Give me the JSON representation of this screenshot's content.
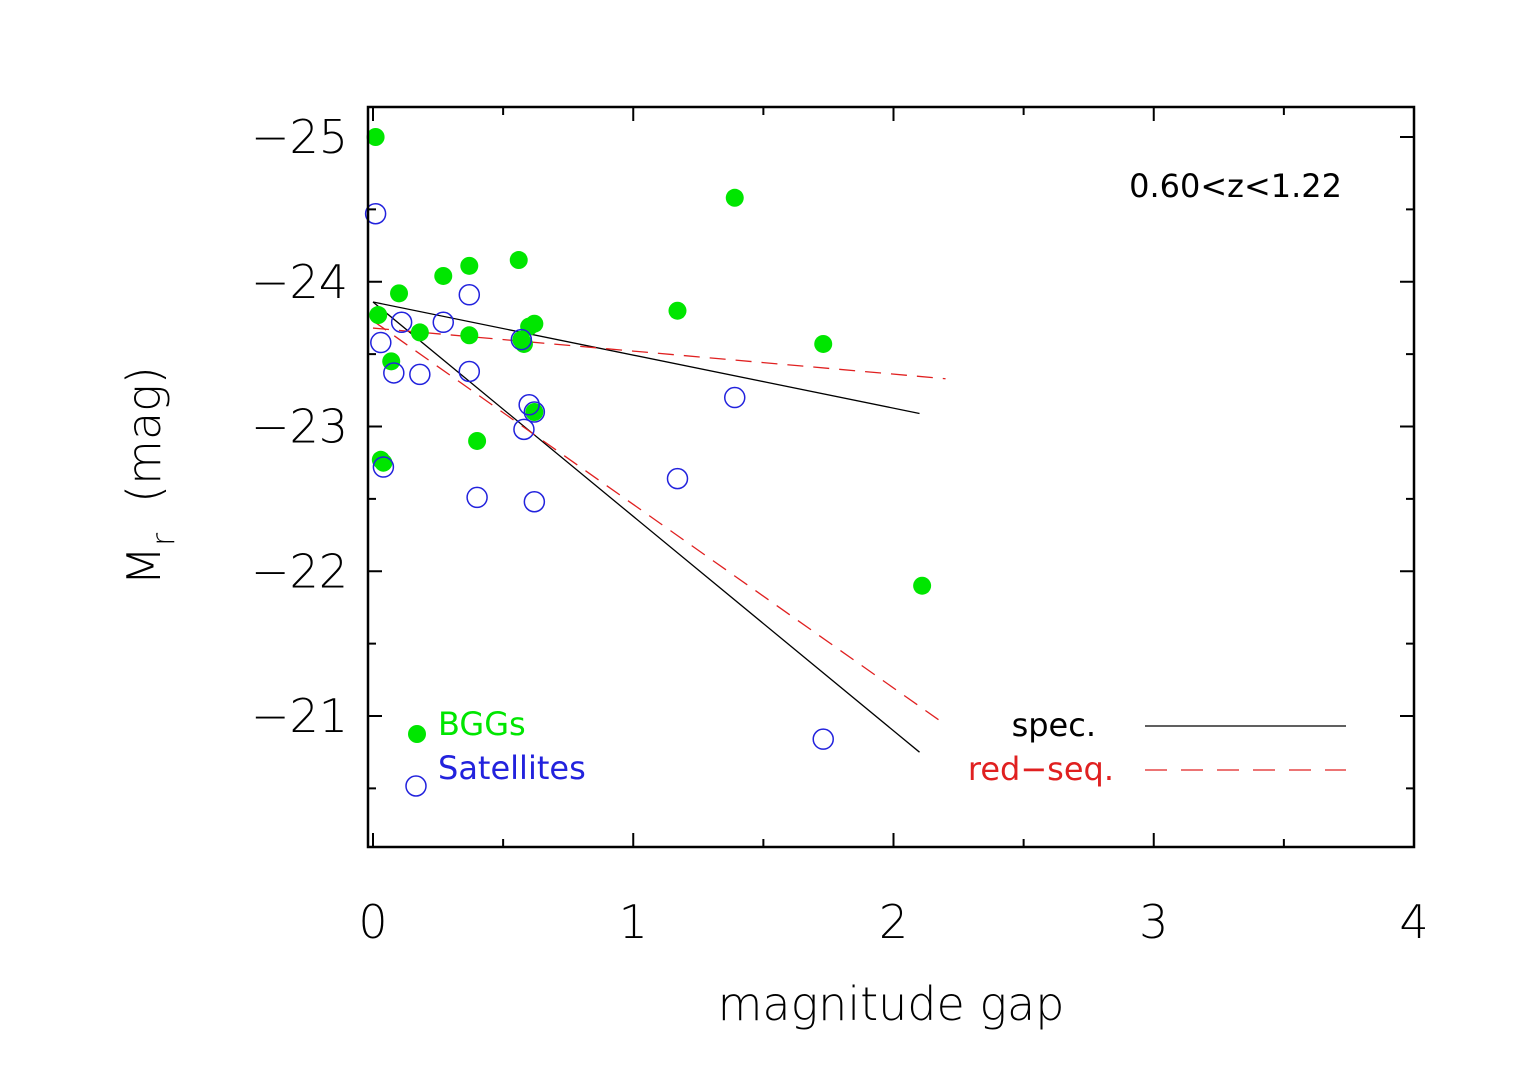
{
  "chart_data": {
    "type": "scatter",
    "xlabel": "magnitude gap",
    "ylabel": {
      "main": "M",
      "subscript": "r",
      "unit": "(mag)"
    },
    "xlim": [
      0,
      4
    ],
    "ylim": [
      -20.1,
      -25.2
    ],
    "x_ticks": [
      0,
      1,
      2,
      3,
      4
    ],
    "x_tick_labels": [
      "0",
      "1",
      "2",
      "3",
      "4"
    ],
    "x_minor_ticks": [
      0.5,
      1.5,
      2.5,
      3.5
    ],
    "y_ticks": [
      -25,
      -24,
      -23,
      -22,
      -21
    ],
    "y_tick_labels": [
      "−25",
      "−24",
      "−23",
      "−22",
      "−21"
    ],
    "y_minor_ticks": [
      -24.5,
      -23.5,
      -22.5,
      -21.5,
      -20.5
    ],
    "annotation": "0.60<z<1.22",
    "colors": {
      "bggs": "#00e600",
      "satellites": "#2222dd",
      "spec": "#000000",
      "redseq": "#e02020"
    },
    "series": [
      {
        "name": "BGGs",
        "marker": "filled-circle",
        "points": [
          [
            0.01,
            -25.0
          ],
          [
            0.02,
            -23.77
          ],
          [
            0.03,
            -22.77
          ],
          [
            0.04,
            -22.75
          ],
          [
            0.07,
            -23.45
          ],
          [
            0.1,
            -23.92
          ],
          [
            0.18,
            -23.65
          ],
          [
            0.27,
            -24.04
          ],
          [
            0.37,
            -24.11
          ],
          [
            0.37,
            -23.63
          ],
          [
            0.4,
            -22.9
          ],
          [
            0.56,
            -24.15
          ],
          [
            0.57,
            -23.6
          ],
          [
            0.58,
            -23.57
          ],
          [
            0.6,
            -23.69
          ],
          [
            0.62,
            -23.71
          ],
          [
            0.62,
            -23.1
          ],
          [
            1.17,
            -23.8
          ],
          [
            1.39,
            -24.58
          ],
          [
            1.73,
            -23.57
          ],
          [
            2.11,
            -21.9
          ]
        ]
      },
      {
        "name": "Satellites",
        "marker": "open-circle",
        "points": [
          [
            0.01,
            -24.47
          ],
          [
            0.03,
            -23.58
          ],
          [
            0.04,
            -22.72
          ],
          [
            0.08,
            -23.37
          ],
          [
            0.11,
            -23.72
          ],
          [
            0.18,
            -23.36
          ],
          [
            0.27,
            -23.72
          ],
          [
            0.37,
            -23.91
          ],
          [
            0.37,
            -23.38
          ],
          [
            0.4,
            -22.51
          ],
          [
            0.57,
            -23.6
          ],
          [
            0.58,
            -22.98
          ],
          [
            0.6,
            -23.15
          ],
          [
            0.62,
            -23.1
          ],
          [
            0.62,
            -22.48
          ],
          [
            1.17,
            -22.64
          ],
          [
            1.39,
            -23.2
          ],
          [
            1.73,
            -20.84
          ]
        ]
      }
    ],
    "fit_lines": [
      {
        "name": "spec. BGGs",
        "style": "solid",
        "color_key": "spec",
        "x": [
          0.0,
          2.1
        ],
        "y": [
          -23.86,
          -23.09
        ]
      },
      {
        "name": "spec. Satellites",
        "style": "solid",
        "color_key": "spec",
        "x": [
          0.0,
          2.1
        ],
        "y": [
          -23.86,
          -20.75
        ]
      },
      {
        "name": "red-seq. BGGs",
        "style": "dashed",
        "color_key": "redseq",
        "x": [
          0.0,
          2.2
        ],
        "y": [
          -23.68,
          -23.33
        ]
      },
      {
        "name": "red-seq. Satellites",
        "style": "dashed",
        "color_key": "redseq",
        "x": [
          0.0,
          2.2
        ],
        "y": [
          -23.73,
          -20.94
        ]
      }
    ],
    "legend": {
      "series_labels": [
        "BGGs",
        "Satellites"
      ],
      "line_labels": [
        "spec.",
        "red−seq."
      ],
      "placement": "bottom"
    }
  }
}
